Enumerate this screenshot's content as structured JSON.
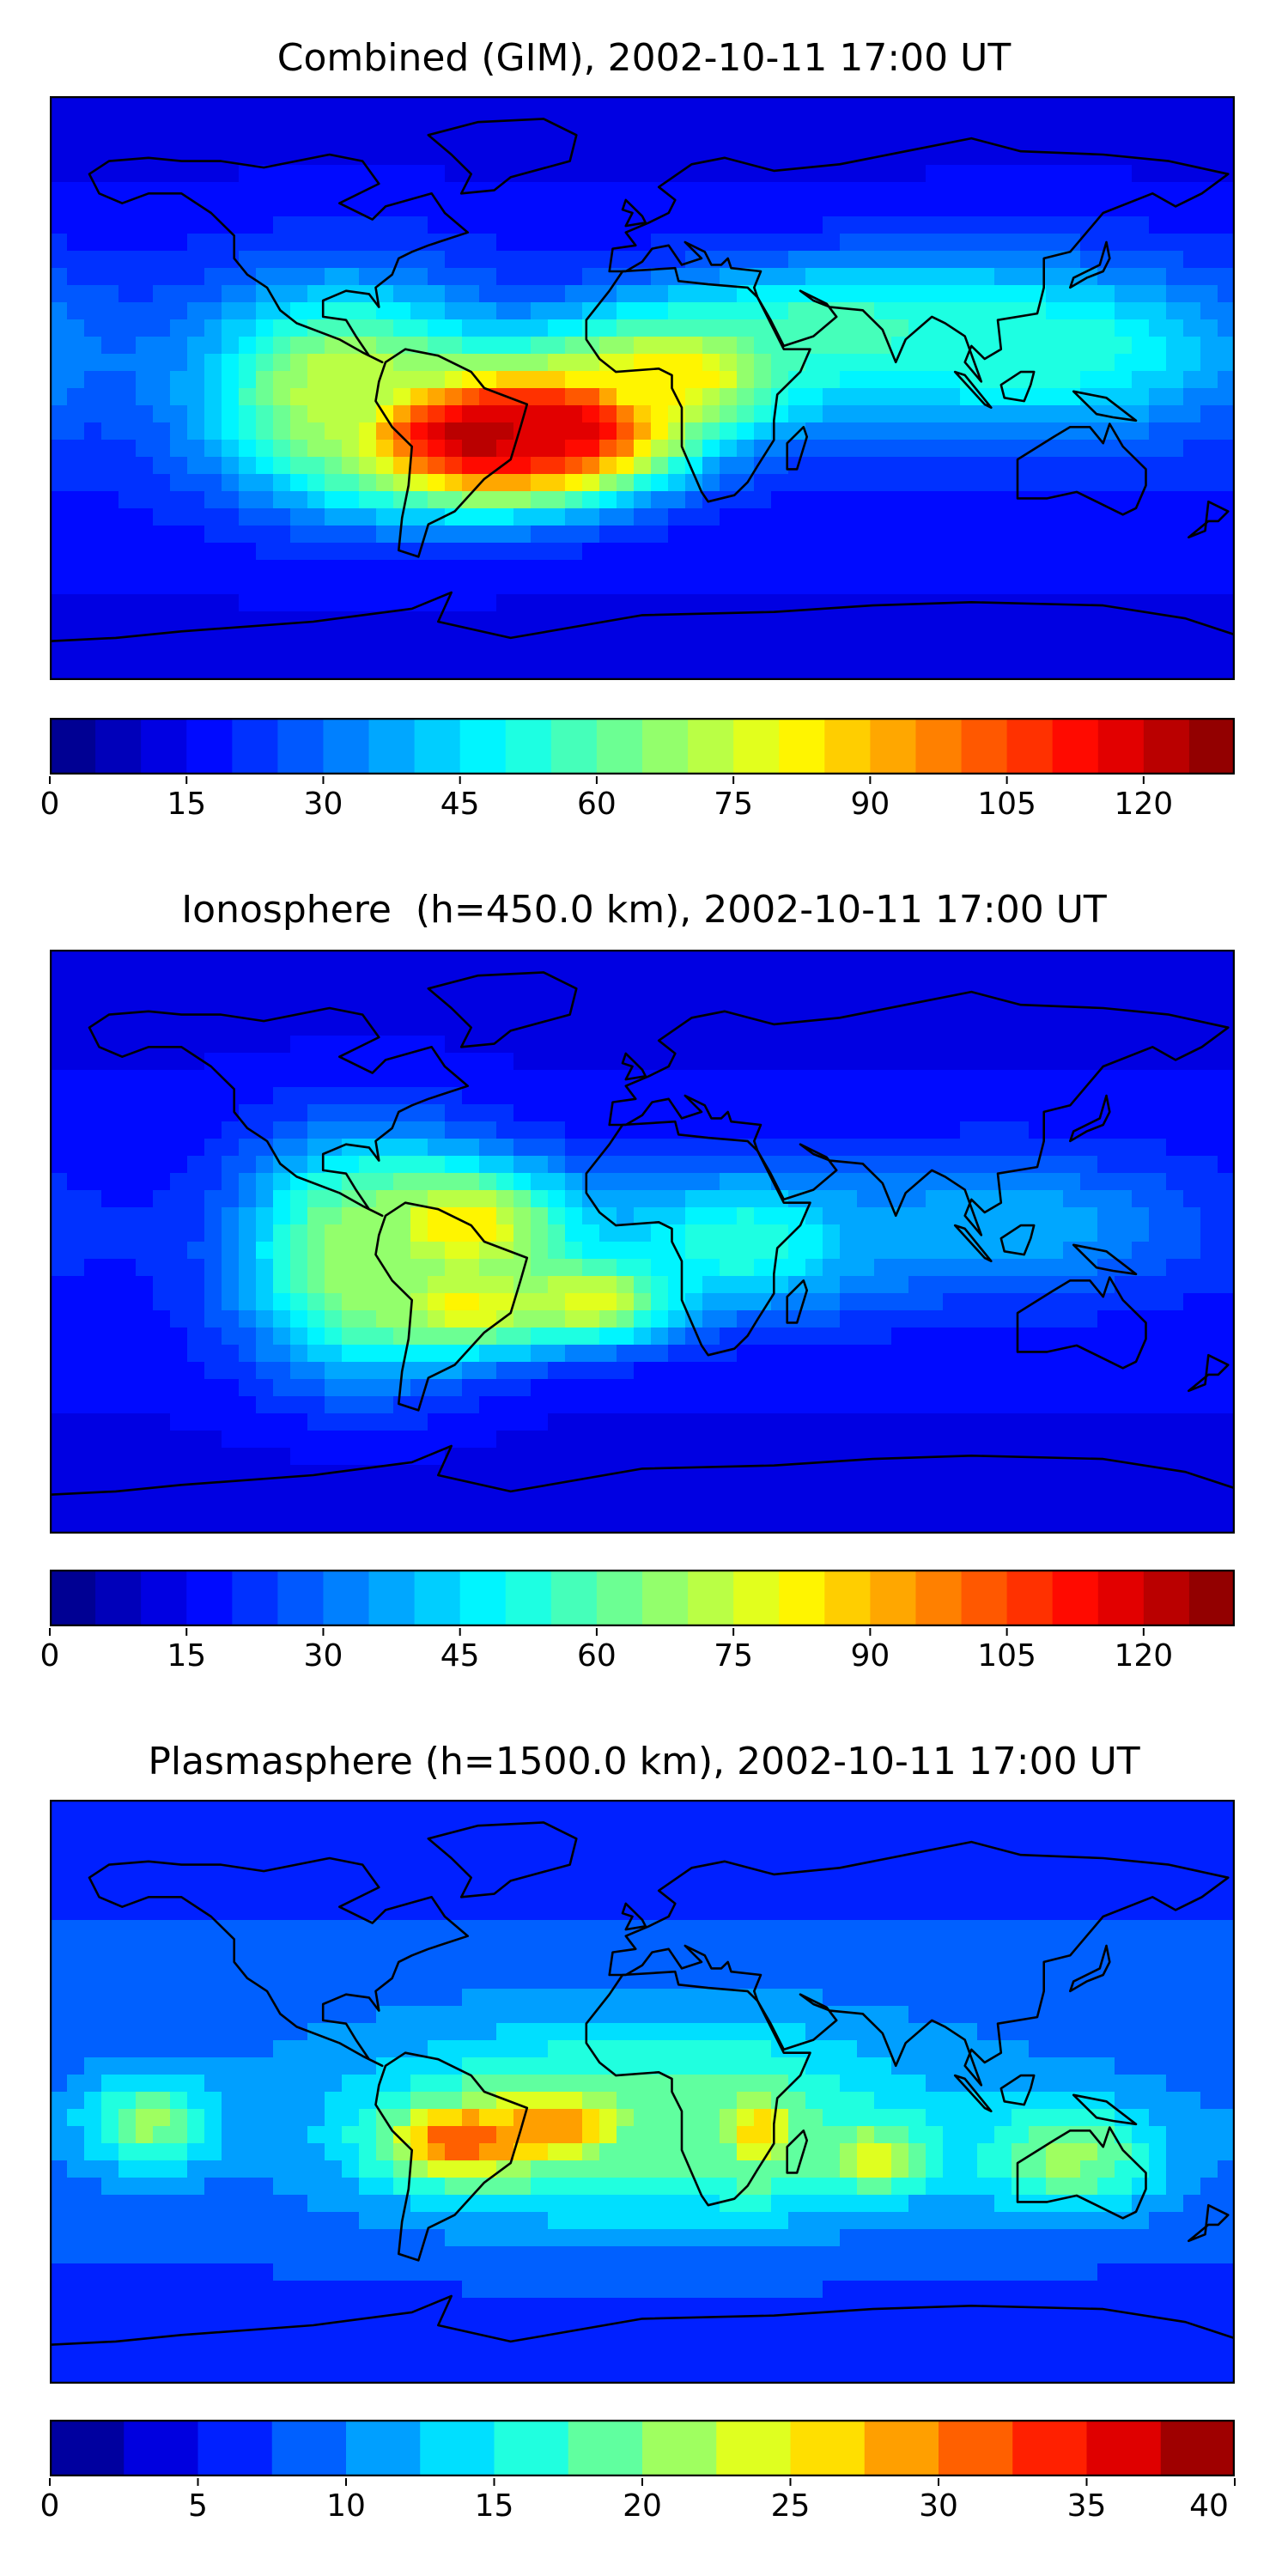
{
  "chart_data": [
    {
      "type": "heatmap",
      "title": "Combined (GIM), 2002-10-11 17:00 UT",
      "colorbar": {
        "min": 0,
        "max": 130,
        "step": 5,
        "ticks": [
          0,
          15,
          30,
          45,
          60,
          75,
          90,
          105,
          120
        ]
      },
      "features": [
        {
          "lon": -50,
          "lat": -15,
          "value": 125,
          "sx": 30,
          "sy": 14
        },
        {
          "lon": -25,
          "lat": -12,
          "value": 120,
          "sx": 25,
          "sy": 12
        },
        {
          "lon": 10,
          "lat": 5,
          "value": 85,
          "sx": 28,
          "sy": 13
        },
        {
          "lon": 60,
          "lat": 18,
          "value": 60,
          "sx": 40,
          "sy": 13
        },
        {
          "lon": 120,
          "lat": 12,
          "value": 55,
          "sx": 45,
          "sy": 18
        },
        {
          "lon": -90,
          "lat": 0,
          "value": 75,
          "sx": 30,
          "sy": 22
        }
      ],
      "background": 20
    },
    {
      "type": "heatmap",
      "title": "Ionosphere  (h=450.0 km), 2002-10-11 17:00 UT",
      "colorbar": {
        "min": 0,
        "max": 130,
        "step": 5,
        "ticks": [
          0,
          15,
          30,
          45,
          60,
          75,
          90,
          105,
          120
        ]
      },
      "features": [
        {
          "lon": -55,
          "lat": 5,
          "value": 85,
          "sx": 25,
          "sy": 13
        },
        {
          "lon": -55,
          "lat": -20,
          "value": 82,
          "sx": 22,
          "sy": 10
        },
        {
          "lon": -15,
          "lat": -18,
          "value": 80,
          "sx": 18,
          "sy": 9
        },
        {
          "lon": -85,
          "lat": -5,
          "value": 70,
          "sx": 25,
          "sy": 25
        },
        {
          "lon": 30,
          "lat": 0,
          "value": 55,
          "sx": 30,
          "sy": 15
        },
        {
          "lon": 110,
          "lat": 5,
          "value": 40,
          "sx": 40,
          "sy": 15
        }
      ],
      "background": 18
    },
    {
      "type": "heatmap",
      "title": "Plasmasphere (h=1500.0 km), 2002-10-11 17:00 UT",
      "colorbar": {
        "min": 0,
        "max": 40,
        "step": 2.5,
        "ticks": [
          0,
          5,
          10,
          15,
          20,
          25,
          30,
          35,
          40
        ]
      },
      "features": [
        {
          "lon": -55,
          "lat": -15,
          "value": 33,
          "sx": 18,
          "sy": 9
        },
        {
          "lon": -25,
          "lat": -10,
          "value": 30,
          "sx": 18,
          "sy": 9
        },
        {
          "lon": 35,
          "lat": -12,
          "value": 27,
          "sx": 10,
          "sy": 12
        },
        {
          "lon": 70,
          "lat": -20,
          "value": 25,
          "sx": 12,
          "sy": 8
        },
        {
          "lon": -150,
          "lat": -10,
          "value": 21,
          "sx": 14,
          "sy": 10
        },
        {
          "lon": 130,
          "lat": -20,
          "value": 21,
          "sx": 20,
          "sy": 12
        },
        {
          "lon": 0,
          "lat": -10,
          "value": 20,
          "sx": 60,
          "sy": 22
        }
      ],
      "background": 9
    }
  ]
}
